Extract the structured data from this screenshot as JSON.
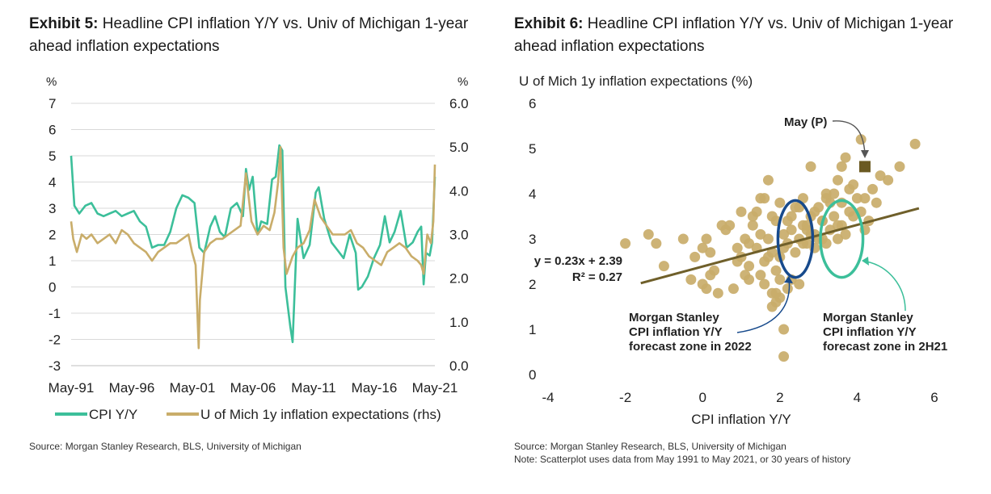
{
  "exhibit5": {
    "label": "Exhibit 5:",
    "title": "Headline CPI inflation Y/Y vs. Univ of Michigan 1-year ahead inflation expectations",
    "source": "Source: Morgan Stanley Research, BLS, University of Michigan"
  },
  "exhibit6": {
    "label": "Exhibit 6:",
    "title": "Headline CPI inflation Y/Y vs. Univ of Michigan 1-year ahead inflation expectations",
    "source": "Source: Morgan Stanley Research, BLS, University of Michigan",
    "note": "Note: Scatterplot uses data from May 1991 to May 2021, or 30 years of history"
  },
  "colors": {
    "cpi": "#3cbf9a",
    "umich": "#c9ad6a",
    "trend": "#6f5f2a",
    "navy": "#174a8c",
    "teal": "#3cbf9a",
    "may_marker": "#6b5a22",
    "grid": "#d9d9d9"
  },
  "chart_data": [
    {
      "type": "line",
      "ylabel_left": "%",
      "ylabel_right": "%",
      "ylim_left": [
        -3,
        7
      ],
      "ylim_right": [
        0,
        6
      ],
      "yticks_left": [
        "7",
        "6",
        "5",
        "4",
        "3",
        "2",
        "1",
        "0",
        "-1",
        "-2",
        "-3"
      ],
      "yticks_right": [
        "6.0",
        "5.0",
        "4.0",
        "3.0",
        "2.0",
        "1.0",
        "0.0"
      ],
      "xticks": [
        "May-91",
        "May-96",
        "May-01",
        "May-06",
        "May-11",
        "May-16",
        "May-21"
      ],
      "xlim": [
        1991.33,
        2021.33
      ],
      "grid": true,
      "legend_position": "bottom",
      "series": [
        {
          "name": "CPI Y/Y",
          "axis": "left",
          "x": [
            1991.33,
            1991.6,
            1992.0,
            1992.5,
            1993.0,
            1993.5,
            1994.0,
            1994.5,
            1995.0,
            1995.5,
            1996.0,
            1996.5,
            1997.0,
            1997.5,
            1998.0,
            1998.5,
            1999.0,
            1999.5,
            2000.0,
            2000.5,
            2001.0,
            2001.5,
            2001.9,
            2002.3,
            2002.8,
            2003.2,
            2003.6,
            2004.0,
            2004.5,
            2005.0,
            2005.5,
            2005.75,
            2006.0,
            2006.3,
            2006.7,
            2007.0,
            2007.5,
            2007.9,
            2008.2,
            2008.5,
            2008.75,
            2009.0,
            2009.4,
            2009.6,
            2010.0,
            2010.5,
            2011.0,
            2011.5,
            2011.75,
            2012.2,
            2012.8,
            2013.3,
            2013.8,
            2014.3,
            2014.8,
            2015.0,
            2015.3,
            2015.8,
            2016.3,
            2016.8,
            2017.2,
            2017.6,
            2018.0,
            2018.5,
            2019.0,
            2019.5,
            2019.9,
            2020.2,
            2020.4,
            2020.6,
            2020.9,
            2021.1,
            2021.33
          ],
          "values": [
            5.0,
            3.1,
            2.8,
            3.1,
            3.2,
            2.8,
            2.7,
            2.8,
            2.9,
            2.7,
            2.8,
            2.9,
            2.5,
            2.3,
            1.5,
            1.6,
            1.6,
            2.1,
            3.0,
            3.5,
            3.4,
            3.2,
            1.5,
            1.3,
            2.3,
            2.7,
            2.1,
            1.9,
            3.0,
            3.2,
            2.7,
            4.5,
            3.7,
            4.2,
            2.0,
            2.5,
            2.4,
            4.1,
            4.2,
            5.4,
            5.2,
            0.0,
            -1.5,
            -2.1,
            2.6,
            1.1,
            1.6,
            3.6,
            3.8,
            2.6,
            1.7,
            1.4,
            1.1,
            2.0,
            1.3,
            -0.1,
            0.0,
            0.4,
            1.1,
            1.6,
            2.7,
            1.7,
            2.1,
            2.9,
            1.5,
            1.7,
            2.1,
            2.3,
            0.1,
            1.3,
            1.2,
            1.7,
            4.2
          ]
        },
        {
          "name": "U of Mich 1y inflation expectations (rhs)",
          "axis": "right",
          "x": [
            1991.33,
            1991.5,
            1991.8,
            1992.2,
            1992.6,
            1993.0,
            1993.5,
            1994.0,
            1994.5,
            1995.0,
            1995.5,
            1996.0,
            1996.5,
            1997.0,
            1997.5,
            1998.0,
            1998.5,
            1999.0,
            1999.5,
            2000.0,
            2000.5,
            2001.0,
            2001.3,
            2001.6,
            2001.85,
            2001.95,
            2002.3,
            2002.8,
            2003.3,
            2003.8,
            2004.3,
            2004.8,
            2005.3,
            2005.75,
            2006.2,
            2006.7,
            2007.2,
            2007.7,
            2008.1,
            2008.4,
            2008.6,
            2008.85,
            2009.1,
            2009.6,
            2010.0,
            2010.5,
            2011.0,
            2011.4,
            2011.9,
            2012.4,
            2012.9,
            2013.4,
            2013.9,
            2014.4,
            2014.9,
            2015.4,
            2015.9,
            2016.4,
            2016.9,
            2017.4,
            2017.9,
            2018.4,
            2018.9,
            2019.4,
            2019.9,
            2020.2,
            2020.4,
            2020.7,
            2021.0,
            2021.2,
            2021.33
          ],
          "values": [
            3.3,
            2.9,
            2.6,
            3.0,
            2.9,
            3.0,
            2.8,
            2.9,
            3.0,
            2.8,
            3.1,
            3.0,
            2.8,
            2.7,
            2.6,
            2.4,
            2.6,
            2.7,
            2.8,
            2.8,
            2.9,
            3.0,
            2.6,
            2.3,
            0.4,
            1.5,
            2.6,
            2.8,
            2.9,
            2.9,
            3.0,
            3.1,
            3.2,
            4.4,
            3.3,
            3.0,
            3.2,
            3.1,
            3.5,
            4.2,
            5.0,
            2.7,
            2.1,
            2.5,
            2.7,
            2.8,
            3.1,
            3.8,
            3.4,
            3.2,
            3.0,
            3.0,
            3.0,
            3.1,
            2.8,
            2.7,
            2.5,
            2.4,
            2.3,
            2.6,
            2.7,
            2.8,
            2.7,
            2.5,
            2.4,
            2.3,
            2.1,
            3.0,
            2.8,
            3.3,
            4.6
          ]
        }
      ]
    },
    {
      "type": "scatter",
      "xlabel": "CPI inflation Y/Y",
      "ylabel": "U of Mich 1y inflation expectations (%)",
      "xlim": [
        -4,
        6
      ],
      "ylim": [
        0,
        6
      ],
      "xticks": [
        "-4",
        "-2",
        "0",
        "2",
        "4",
        "6"
      ],
      "yticks": [
        "6",
        "5",
        "4",
        "3",
        "2",
        "1",
        "0"
      ],
      "grid": false,
      "points_x": [
        -2.0,
        -1.4,
        -1.2,
        -1.0,
        -0.5,
        -0.3,
        -0.2,
        0.0,
        0.1,
        0.2,
        0.3,
        0.5,
        0.1,
        0.0,
        0.2,
        0.6,
        0.9,
        1.0,
        1.1,
        1.2,
        1.3,
        1.4,
        1.5,
        1.6,
        1.7,
        1.8,
        1.9,
        2.0,
        2.1,
        2.2,
        2.3,
        2.4,
        2.5,
        2.6,
        2.7,
        2.8,
        2.9,
        3.0,
        3.1,
        3.2,
        3.3,
        3.4,
        3.5,
        3.6,
        3.7,
        3.8,
        1.2,
        1.5,
        1.7,
        1.9,
        2.1,
        2.3,
        2.5,
        2.7,
        2.9,
        3.1,
        3.3,
        3.5,
        1.4,
        1.6,
        1.8,
        2.0,
        2.2,
        2.4,
        2.6,
        2.8,
        3.0,
        3.2,
        3.4,
        1.6,
        2.2,
        2.0,
        1.8,
        2.3,
        2.5,
        1.3,
        1.0,
        0.7,
        0.9,
        1.1,
        2.1,
        2.1,
        1.9,
        1.8,
        3.6,
        3.9,
        4.1,
        4.3,
        4.5,
        4.8,
        5.1,
        5.5,
        3.7,
        4.0,
        4.4,
        4.6,
        3.2,
        3.5,
        3.8,
        4.2,
        2.8,
        4.1,
        2.7,
        3.1,
        3.6,
        3.9,
        4.2,
        1.7,
        1.5,
        2.6,
        2.9,
        1.2,
        0.8,
        0.4,
        1.9,
        2.0
      ],
      "points_y": [
        2.9,
        3.1,
        2.9,
        2.4,
        3.0,
        2.1,
        2.6,
        2.8,
        3.0,
        2.7,
        2.3,
        3.3,
        1.9,
        2.0,
        2.2,
        3.2,
        2.8,
        2.6,
        3.0,
        2.9,
        3.3,
        2.8,
        3.1,
        2.5,
        3.0,
        2.7,
        3.4,
        2.6,
        3.1,
        2.9,
        3.2,
        2.7,
        3.0,
        3.3,
        2.9,
        3.1,
        2.8,
        3.0,
        3.4,
        2.9,
        3.2,
        3.5,
        3.0,
        3.3,
        3.1,
        3.6,
        2.4,
        2.2,
        2.6,
        2.3,
        2.8,
        3.5,
        3.7,
        3.2,
        3.6,
        3.4,
        3.8,
        3.3,
        3.6,
        3.9,
        3.5,
        3.8,
        3.4,
        3.7,
        3.9,
        3.5,
        3.7,
        3.9,
        4.0,
        2.0,
        1.9,
        1.7,
        1.8,
        2.1,
        2.0,
        3.5,
        3.6,
        3.3,
        2.5,
        2.2,
        1.0,
        0.4,
        1.6,
        1.5,
        4.6,
        4.2,
        3.6,
        3.4,
        3.8,
        4.3,
        4.6,
        5.1,
        4.8,
        3.9,
        4.1,
        4.4,
        4.0,
        4.3,
        4.1,
        3.9,
        4.6,
        5.2,
        3.3,
        3.0,
        3.8,
        3.5,
        3.2,
        4.3,
        3.9,
        2.9,
        3.1,
        2.1,
        1.9,
        1.8,
        1.8,
        2.1
      ],
      "highlight": {
        "label": "May (P)",
        "x": 4.2,
        "y": 4.6
      },
      "trendline": {
        "equation": "y = 0.23x + 2.39",
        "r2": "R² = 0.27",
        "slope": 0.23,
        "intercept": 2.39,
        "x_range": [
          -1.6,
          5.6
        ]
      },
      "zones": [
        {
          "label_lines": [
            "Morgan Stanley",
            "CPI inflation Y/Y",
            "forecast zone in 2022"
          ],
          "center_x": 2.4,
          "center_y": 3.0,
          "radius_x": 0.45,
          "radius_y": 0.85
        },
        {
          "label_lines": [
            "Morgan Stanley",
            "CPI inflation Y/Y",
            "forecast zone in 2H21"
          ],
          "center_x": 3.6,
          "center_y": 3.0,
          "radius_x": 0.55,
          "radius_y": 0.85
        }
      ]
    }
  ]
}
